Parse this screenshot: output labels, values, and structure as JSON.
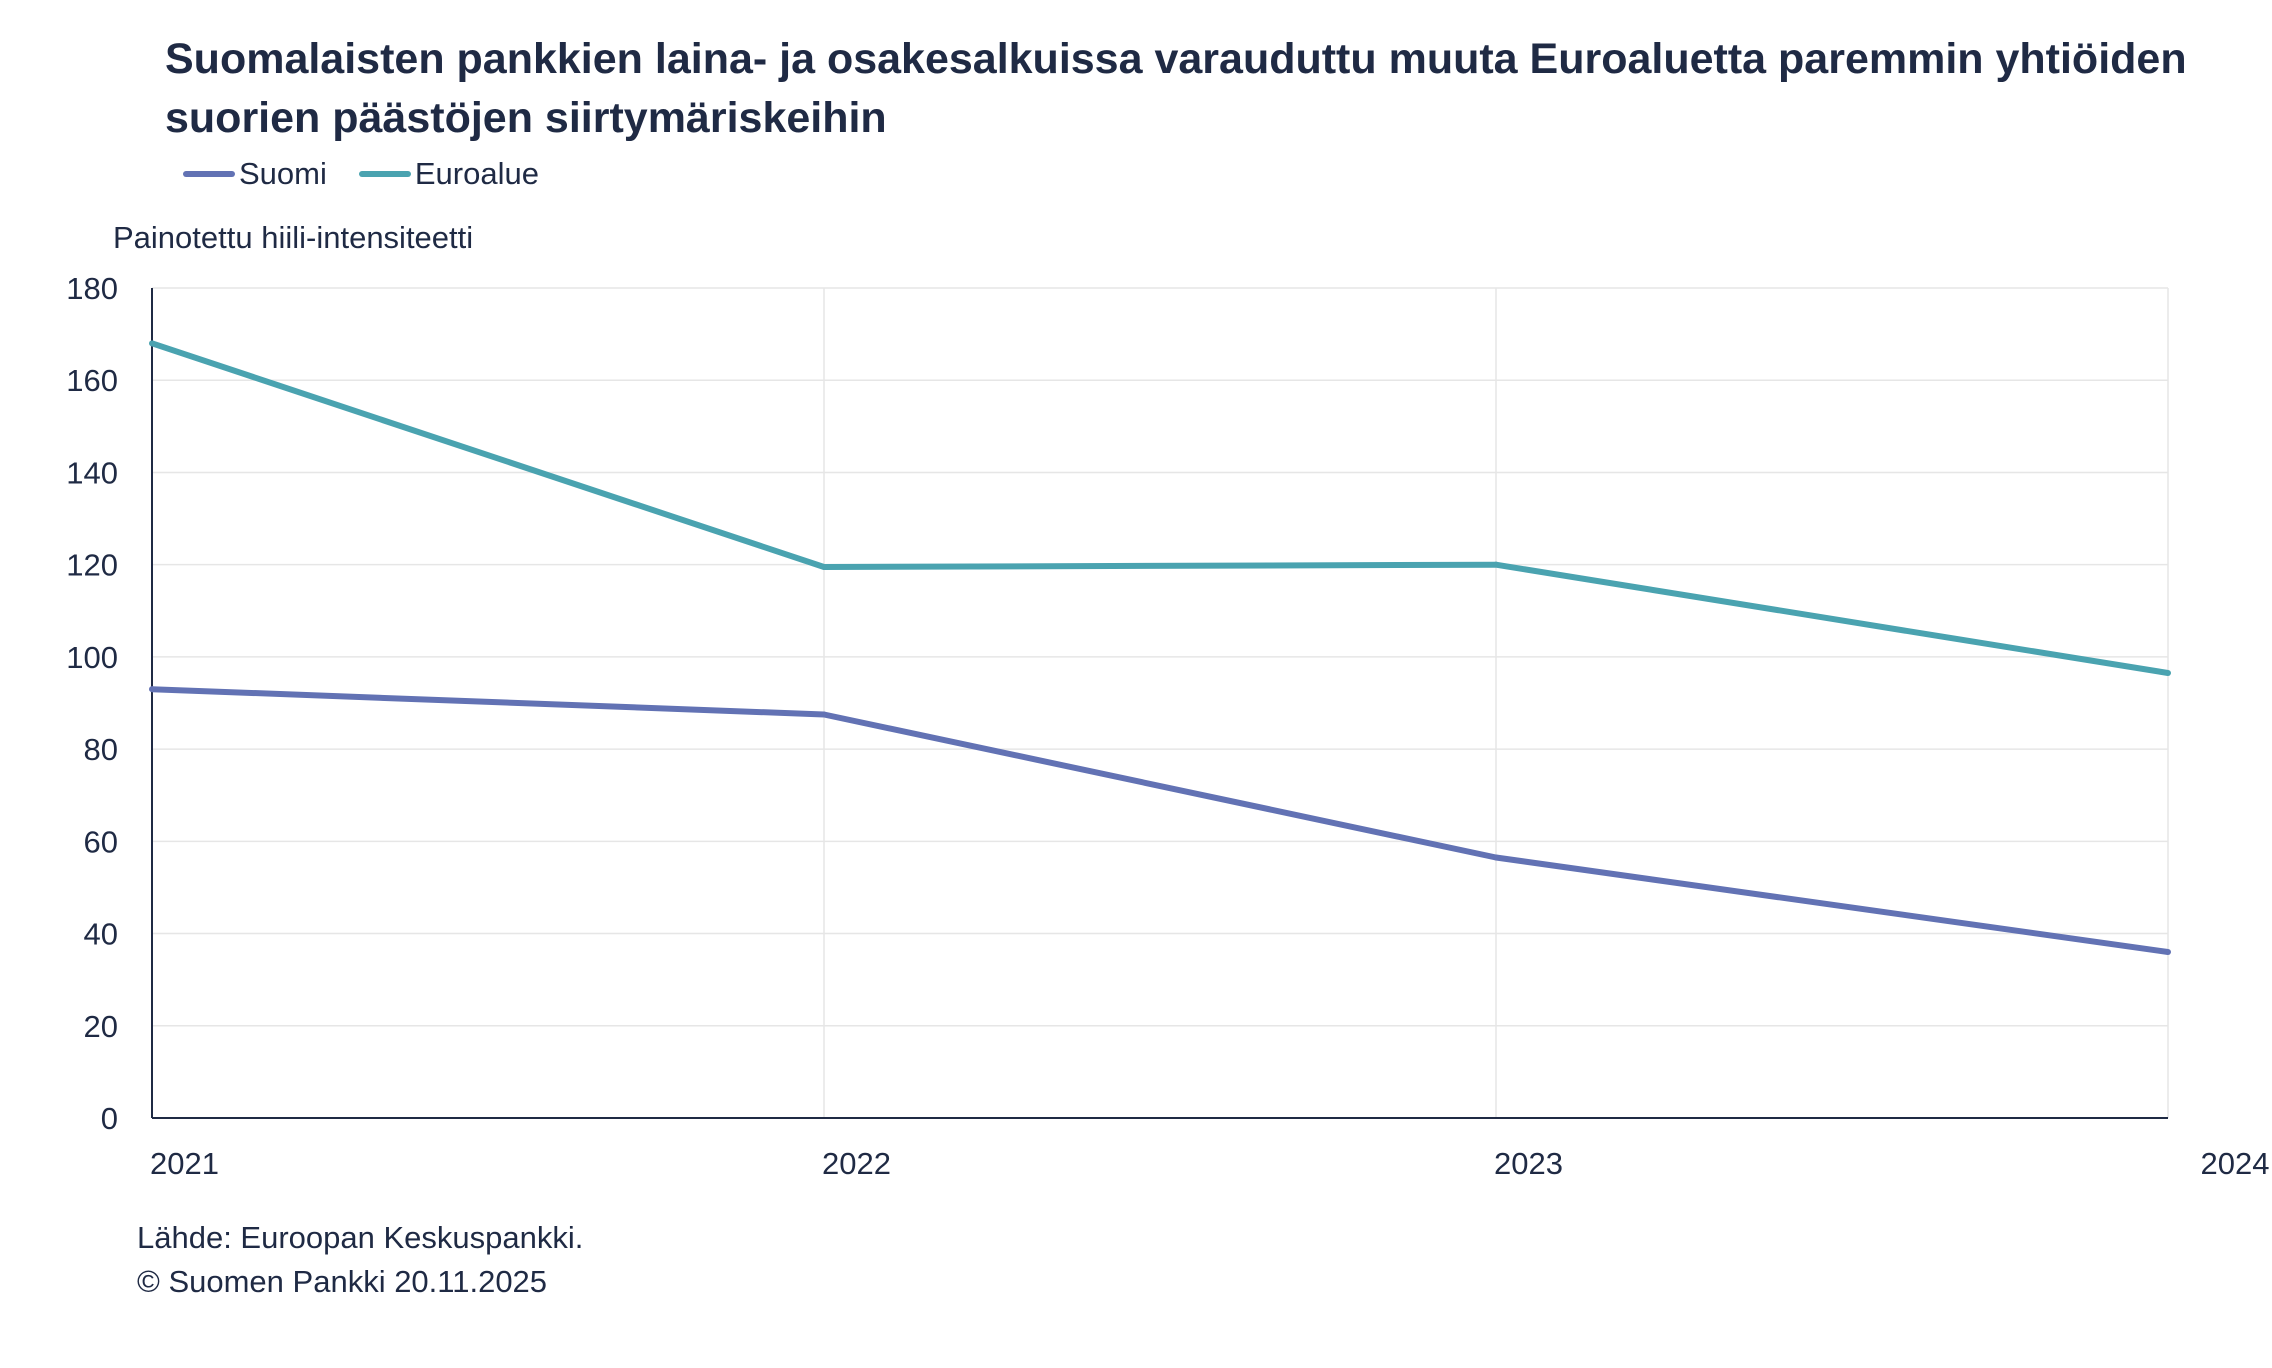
{
  "chart_data": {
    "type": "line",
    "title": "Suomalaisten pankkien laina- ja osakesalkuissa varauduttu muuta Euroaluetta paremmin yhtiöiden suorien päästöjen siirtymäriskeihin",
    "ylabel": "Painotettu hiili-intensiteetti",
    "xlabel": "",
    "x": [
      "2021",
      "2022",
      "2023",
      "2024"
    ],
    "ylim": [
      0,
      180
    ],
    "yticks": [
      0,
      20,
      40,
      60,
      80,
      100,
      120,
      140,
      160,
      180
    ],
    "grid": true,
    "legend_position": "top-left",
    "series": [
      {
        "name": "Suomi",
        "color": "#6272b4",
        "values": [
          93,
          87.5,
          56.5,
          36
        ]
      },
      {
        "name": "Euroalue",
        "color": "#4aa3b0",
        "values": [
          168,
          119.5,
          120,
          96.5
        ]
      }
    ]
  },
  "footer": {
    "source": "Lähde: Euroopan Keskuspankki.",
    "copyright": "© Suomen Pankki 20.11.2025"
  }
}
